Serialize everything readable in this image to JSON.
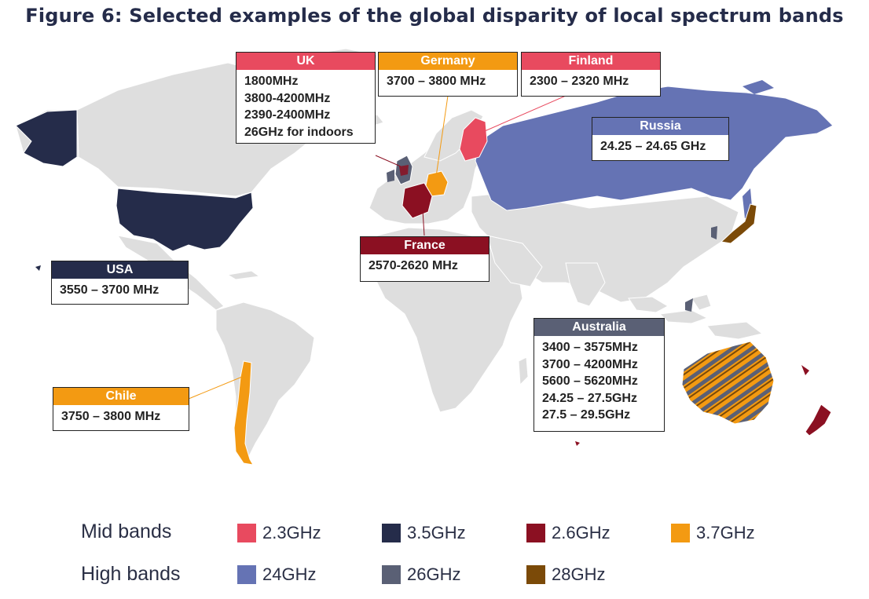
{
  "title": "Figure 6: Selected examples of the global disparity of local spectrum bands",
  "colors": {
    "band_2_3": "#e84a5f",
    "band_3_5": "#252c4a",
    "band_2_6": "#8b1022",
    "band_3_7": "#f39a12",
    "band_24": "#6573b4",
    "band_26": "#5a6075",
    "band_28": "#7b4a08",
    "land": "#dedede"
  },
  "callouts": {
    "uk": {
      "name": "UK",
      "bands": [
        "1800MHz",
        "3800-4200MHz",
        "2390-2400MHz",
        "26GHz for indoors"
      ]
    },
    "germany": {
      "name": "Germany",
      "bands": [
        "3700 – 3800 MHz"
      ]
    },
    "finland": {
      "name": "Finland",
      "bands": [
        "2300 – 2320 MHz"
      ]
    },
    "russia": {
      "name": "Russia",
      "bands": [
        "24.25 – 24.65 GHz"
      ]
    },
    "usa": {
      "name": "USA",
      "bands": [
        "3550 – 3700 MHz"
      ]
    },
    "france": {
      "name": "France",
      "bands": [
        "2570-2620 MHz"
      ]
    },
    "australia": {
      "name": "Australia",
      "bands": [
        "3400 – 3575MHz",
        "3700 – 4200MHz",
        "5600 – 5620MHz",
        "24.25 – 27.5GHz",
        "27.5 – 29.5GHz"
      ]
    },
    "chile": {
      "name": "Chile",
      "bands": [
        "3750 – 3800 MHz"
      ]
    }
  },
  "legend": {
    "mid_label": "Mid bands",
    "high_label": "High bands",
    "mid": [
      {
        "label": "2.3GHz",
        "color": "#e84a5f"
      },
      {
        "label": "3.5GHz",
        "color": "#252c4a"
      },
      {
        "label": "2.6GHz",
        "color": "#8b1022"
      },
      {
        "label": "3.7GHz",
        "color": "#f39a12"
      }
    ],
    "high": [
      {
        "label": "24GHz",
        "color": "#6573b4"
      },
      {
        "label": "26GHz",
        "color": "#5a6075"
      },
      {
        "label": "28GHz",
        "color": "#7b4a08"
      }
    ]
  }
}
